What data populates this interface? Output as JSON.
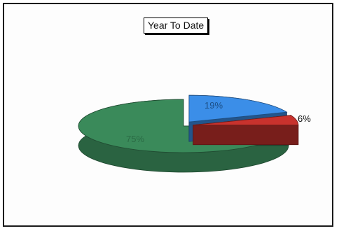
{
  "chart_data": {
    "type": "pie",
    "title": "Year To Date",
    "slices": [
      {
        "label": "19%",
        "value": 19,
        "color": "#3b8ee8"
      },
      {
        "label": "6%",
        "value": 6,
        "color": "#c8322d"
      },
      {
        "label": "75%",
        "value": 75,
        "color": "#3a8a5a"
      }
    ],
    "style": "3d-exploded",
    "legend": "none"
  }
}
